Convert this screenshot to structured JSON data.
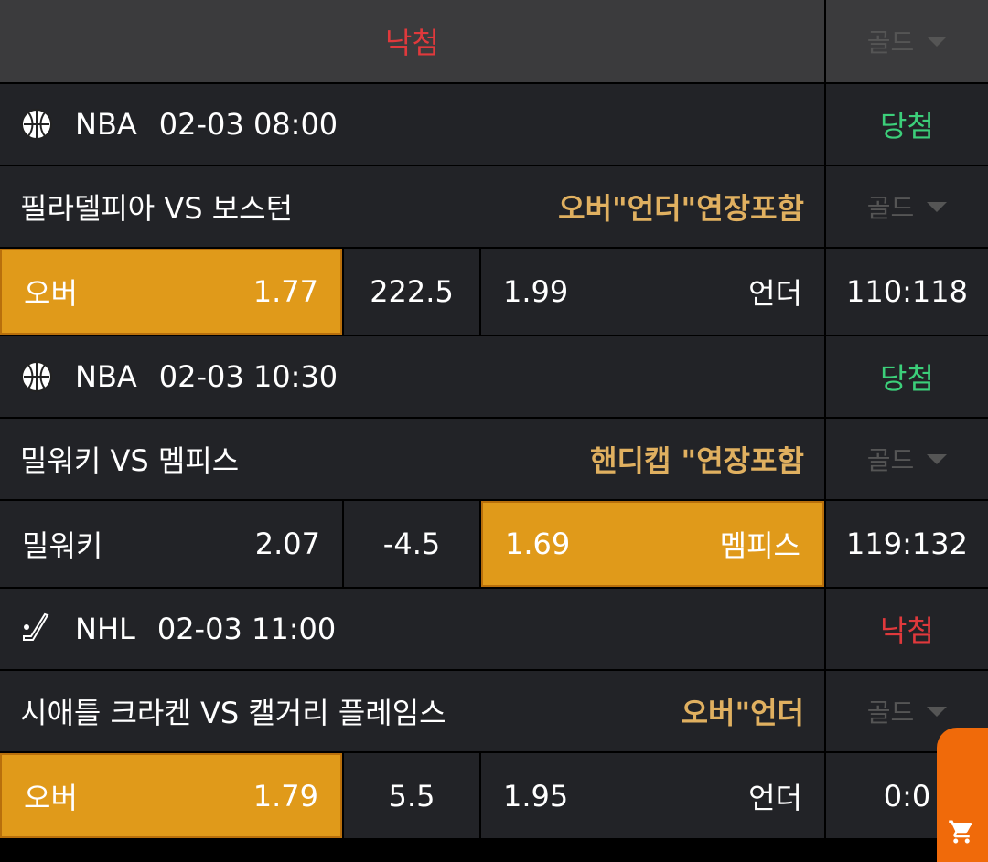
{
  "header": {
    "status": "낙첨",
    "gold_label": "골드"
  },
  "colors": {
    "selected": "#e09a1a",
    "market": "#e0b060",
    "win": "#3ccf7a",
    "lose": "#e0393c",
    "cart": "#f06a0a"
  },
  "games": [
    {
      "sport_icon": "basketball-icon",
      "league": "NBA",
      "datetime": "02-03 08:00",
      "result": "당첨",
      "result_type": "win",
      "teams": "필라델피아 VS 보스턴",
      "market": "오버\"언더\"연장포함",
      "gold_label": "골드",
      "left_label": "오버",
      "left_odds": "1.77",
      "line": "222.5",
      "right_odds": "1.99",
      "right_label": "언더",
      "score": "110:118",
      "selected": "left"
    },
    {
      "sport_icon": "basketball-icon",
      "league": "NBA",
      "datetime": "02-03 10:30",
      "result": "당첨",
      "result_type": "win",
      "teams": "밀워키 VS 멤피스",
      "market": "핸디캡 \"연장포함",
      "gold_label": "골드",
      "left_label": "밀워키",
      "left_odds": "2.07",
      "line": "-4.5",
      "right_odds": "1.69",
      "right_label": "멤피스",
      "score": "119:132",
      "selected": "right"
    },
    {
      "sport_icon": "hockey-stick-icon",
      "league": "NHL",
      "datetime": "02-03 11:00",
      "result": "낙첨",
      "result_type": "lose",
      "teams": "시애틀 크라켄 VS 캘거리 플레임스",
      "market": "오버\"언더",
      "gold_label": "골드",
      "left_label": "오버",
      "left_odds": "1.79",
      "line": "5.5",
      "right_odds": "1.95",
      "right_label": "언더",
      "score": "0:0",
      "selected": "left"
    }
  ]
}
